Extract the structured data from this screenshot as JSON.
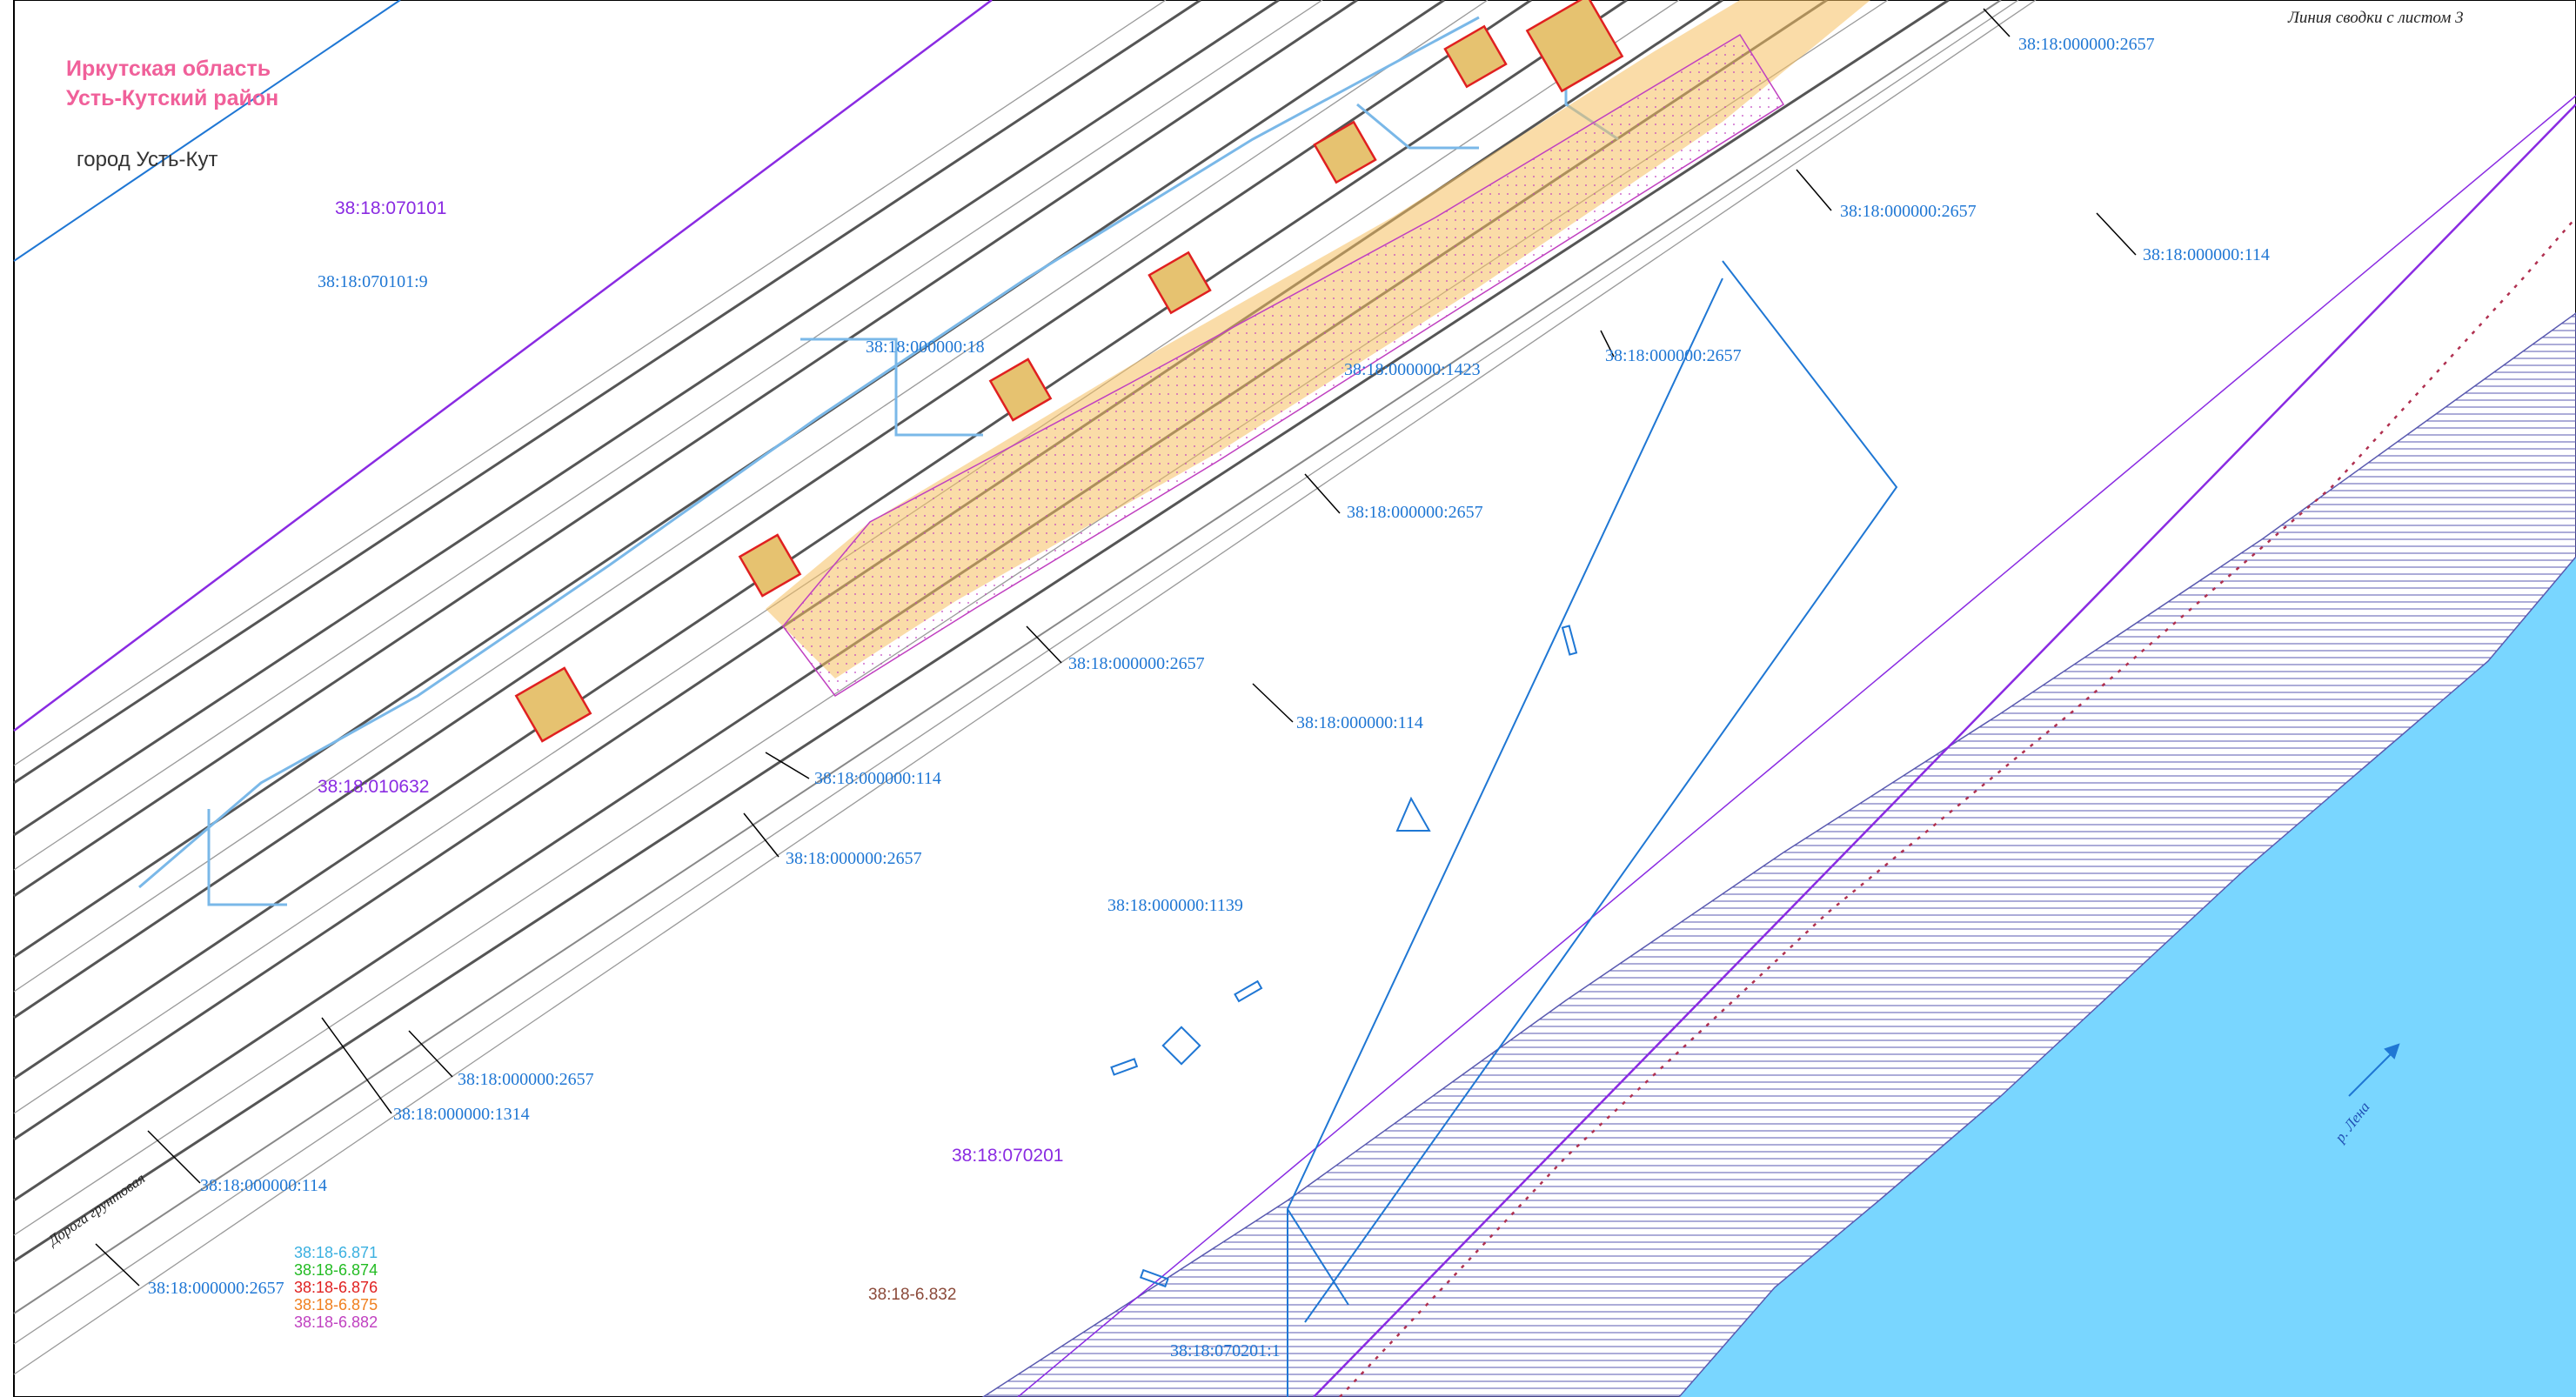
{
  "header": {
    "region_line1": "Иркутская область",
    "region_line2": "Усть-Кутский район",
    "city": "город Усть-Кут",
    "sheet_note": "Линия сводки с листом 3"
  },
  "quarters": {
    "q070101": "38:18:070101",
    "q010632": "38:18:010632",
    "q070201": "38:18:070201",
    "q6832": "38:18-6.832"
  },
  "parcels": {
    "p070101_9": "38:18:070101:9",
    "p18": "38:18:000000:18",
    "p2657_top": "38:18:000000:2657",
    "p2657_b": "38:18:000000:2657",
    "p114_top": "38:18:000000:114",
    "p2657_c": "38:18:000000:2657",
    "p1423": "38:18:000000:1423",
    "p2657_d": "38:18:000000:2657",
    "p2657_e": "38:18:000000:2657",
    "p114_mid": "38:18:000000:114",
    "p114_b": "38:18:000000:114",
    "p2657_f": "38:18:000000:2657",
    "p1139": "38:18:000000:1139",
    "p2657_g": "38:18:000000:2657",
    "p1314": "38:18:000000:1314",
    "p114_c": "38:18:000000:114",
    "p2657_h": "38:18:000000:2657",
    "p070201_1": "38:18:070201:1"
  },
  "legend": [
    {
      "label": "38:18-6.871",
      "color": "#3ab0e0"
    },
    {
      "label": "38:18-6.874",
      "color": "#22bb22"
    },
    {
      "label": "38:18-6.876",
      "color": "#e02020"
    },
    {
      "label": "38:18-6.875",
      "color": "#f08020"
    },
    {
      "label": "38:18-6.882",
      "color": "#c040c0"
    }
  ],
  "river_name": "р. Лена",
  "road_label": "Дорога грунтовая",
  "colors": {
    "river": "#79d6ff",
    "quarter_line": "#8a2be2",
    "parcel_line": "#1f77d4",
    "rail": "#555555",
    "zone_fill": "#f5c060",
    "zone_border": "#e02020",
    "hatch": "#5a5ab0"
  }
}
